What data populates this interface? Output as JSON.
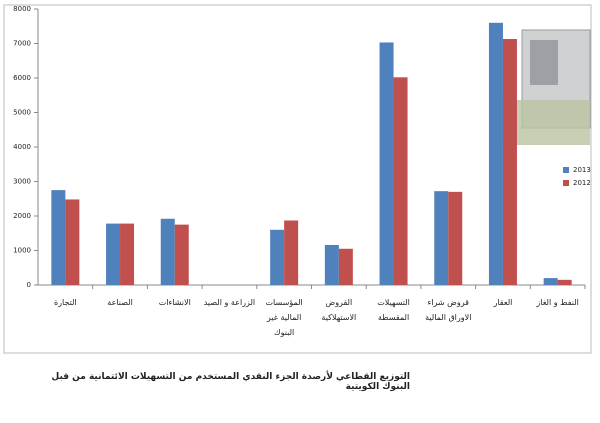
{
  "chart_data": {
    "type": "bar",
    "title": "التوزيع القطاعي لأرصدة الجزء النقدي المستخدم من التسهيلات الائتمانية من قبل البنوك الكويتية",
    "categories": [
      "التجارة",
      "الصناعة",
      "الانشاءات",
      "الزراعة و الصيد",
      "المؤسسات المالية غير البنوك",
      "القروض الاستهلاكية",
      "التسهيلات المقسطة",
      "قروض شراء الاوراق المالية",
      "العقار",
      "النفط و الغاز"
    ],
    "series": [
      {
        "name": "2013",
        "color": "#4f81bd",
        "values": [
          2750,
          1780,
          1920,
          0,
          1600,
          1160,
          7030,
          2720,
          7600,
          200
        ]
      },
      {
        "name": "2012",
        "color": "#c0504d",
        "values": [
          2480,
          1780,
          1750,
          0,
          1870,
          1050,
          6020,
          2700,
          7130,
          150
        ]
      }
    ],
    "ylim": [
      0,
      8000
    ],
    "yticks": [
      0,
      1000,
      2000,
      3000,
      4000,
      5000,
      6000,
      7000,
      8000
    ],
    "grid": false,
    "legend": "right"
  }
}
